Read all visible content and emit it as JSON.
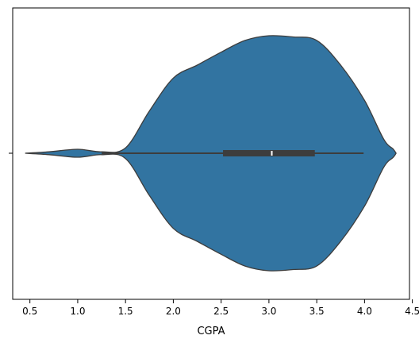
{
  "chart_data": {
    "type": "violin",
    "title": "",
    "xlabel": "CGPA",
    "ylabel": "",
    "xlim": [
      0.32,
      4.47
    ],
    "x_ticks": [
      "0.5",
      "1.0",
      "1.5",
      "2.0",
      "2.5",
      "3.0",
      "3.5",
      "4.0",
      "4.5"
    ],
    "y_ticks": [
      ""
    ],
    "grid": false,
    "color": "#3274a1",
    "edge_color": "#3d3d3d",
    "box": {
      "whisker_low": 1.25,
      "q1": 2.52,
      "median": 3.03,
      "q3": 3.48,
      "whisker_high": 3.99
    },
    "density": {
      "x": [
        0.45,
        0.7,
        1.0,
        1.25,
        1.5,
        1.75,
        2.0,
        2.25,
        2.5,
        2.75,
        3.0,
        3.25,
        3.5,
        3.75,
        4.0,
        4.2,
        4.3,
        4.33
      ],
      "y": [
        0.0,
        0.012,
        0.034,
        0.012,
        0.045,
        0.36,
        0.64,
        0.75,
        0.86,
        0.96,
        1.0,
        0.99,
        0.96,
        0.75,
        0.45,
        0.12,
        0.035,
        0.0
      ]
    }
  }
}
